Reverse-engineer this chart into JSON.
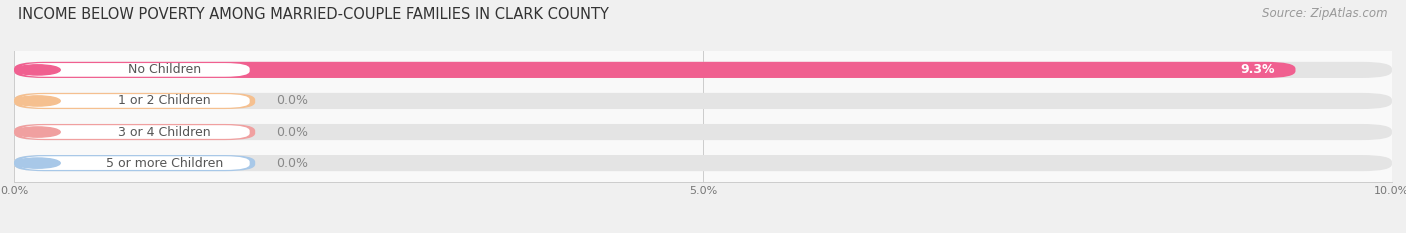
{
  "title": "INCOME BELOW POVERTY AMONG MARRIED-COUPLE FAMILIES IN CLARK COUNTY",
  "source": "Source: ZipAtlas.com",
  "categories": [
    "No Children",
    "1 or 2 Children",
    "3 or 4 Children",
    "5 or more Children"
  ],
  "values": [
    9.3,
    0.0,
    0.0,
    0.0
  ],
  "bar_colors": [
    "#F06090",
    "#F5C090",
    "#F0A0A0",
    "#A8C8E8"
  ],
  "xlim_max": 10.0,
  "xticks": [
    0.0,
    5.0,
    10.0
  ],
  "xtick_labels": [
    "0.0%",
    "5.0%",
    "10.0%"
  ],
  "bar_height": 0.52,
  "background_color": "#f0f0f0",
  "plot_bg_color": "#f9f9f9",
  "title_fontsize": 10.5,
  "source_fontsize": 8.5,
  "label_fontsize": 9,
  "value_fontsize": 9
}
